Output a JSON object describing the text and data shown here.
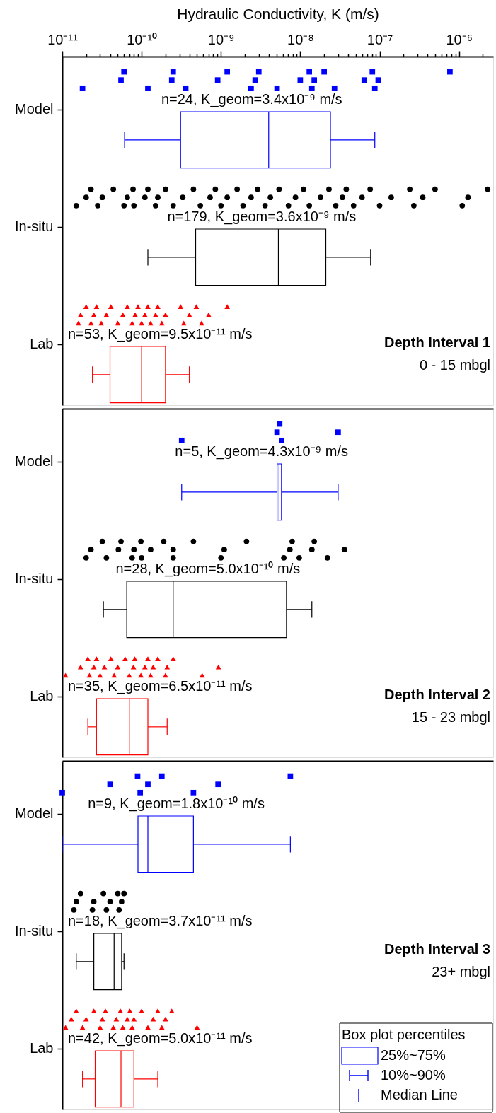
{
  "chart_data": [
    {
      "type": "box",
      "orientation": "horizontal",
      "log": "x",
      "xlabel": "Hydraulic Conductivity, K (m/s)",
      "categories": [
        "Model",
        "In-situ",
        "Lab"
      ],
      "colors": [
        "#0000ff",
        "#000000",
        "#ff0000"
      ],
      "boxes": [
        {
          "low": 6.1e-11,
          "q1": 3.1e-10,
          "median": 4e-09,
          "q3": 2.4e-08,
          "high": 8.7e-08
        },
        {
          "low": 1.2e-10,
          "q1": 4.8e-10,
          "median": 5.3e-09,
          "q3": 2.1e-08,
          "high": 7.7e-08
        },
        {
          "low": 2.4e-11,
          "q1": 4e-11,
          "median": 1e-10,
          "q3": 2e-10,
          "high": 4e-10
        }
      ],
      "series": [
        {
          "type": "scatter",
          "color": "#0000ff",
          "marker": "square",
          "x": [
            "Model",
            "Model",
            "Model",
            "Model",
            "Model",
            "Model",
            "Model",
            "Model",
            "Model",
            "Model",
            "Model",
            "Model",
            "Model",
            "Model",
            "Model",
            "Model",
            "Model",
            "Model",
            "Model",
            "Model",
            "Model",
            "Model",
            "Model",
            "Model"
          ],
          "values": [
            1.8e-11,
            5.5e-11,
            6e-11,
            1.2e-10,
            2.4e-10,
            2.5e-10,
            3.6e-10,
            9.1e-10,
            1.2e-09,
            2.4e-09,
            2.7e-09,
            3e-09,
            5.1e-09,
            1e-08,
            1.3e-08,
            1.4e-08,
            1.5e-08,
            2e-08,
            2.7e-08,
            6.4e-08,
            8.1e-08,
            8.7e-08,
            9.6e-08,
            7.7e-07
          ]
        },
        {
          "type": "scatter",
          "color": "#000000",
          "marker": "circle",
          "x": [
            "In-situ",
            "In-situ",
            "In-situ",
            "In-situ",
            "In-situ",
            "In-situ",
            "In-situ",
            "In-situ",
            "In-situ",
            "In-situ",
            "In-situ",
            "In-situ",
            "In-situ",
            "In-situ",
            "In-situ",
            "In-situ",
            "In-situ",
            "In-situ",
            "In-situ",
            "In-situ",
            "In-situ",
            "In-situ",
            "In-situ",
            "In-situ",
            "In-situ",
            "In-situ",
            "In-situ",
            "In-situ",
            "In-situ",
            "In-situ",
            "In-situ",
            "In-situ",
            "In-situ",
            "In-situ",
            "In-situ",
            "In-situ",
            "In-situ",
            "In-situ",
            "In-situ",
            "In-situ",
            "In-situ",
            "In-situ",
            "In-situ",
            "In-situ",
            "In-situ",
            "In-situ",
            "In-situ",
            "In-situ",
            "In-situ",
            "In-situ",
            "In-situ"
          ],
          "values": [
            1.5e-11,
            2e-11,
            2.3e-11,
            2.8e-11,
            3.2e-11,
            4.4e-11,
            6e-11,
            6.6e-11,
            7.8e-11,
            8e-11,
            1.1e-10,
            1.2e-10,
            1.5e-10,
            1.6e-10,
            2e-10,
            2.5e-10,
            3.3e-10,
            4.5e-10,
            5.5e-10,
            7.3e-10,
            8.5e-10,
            1e-09,
            1.2e-09,
            1.6e-09,
            1.9e-09,
            2.4e-09,
            2.9e-09,
            3.6e-09,
            4.2e-09,
            5.4e-09,
            7.1e-09,
            8.7e-09,
            1.1e-08,
            1.3e-08,
            1.8e-08,
            2.3e-08,
            2.8e-08,
            3.4e-08,
            3.8e-08,
            4.7e-08,
            6e-08,
            7.6e-08,
            1e-07,
            1.4e-07,
            2.4e-07,
            2.7e-07,
            3.5e-07,
            5e-07,
            1.1e-06,
            1.3e-06,
            2.3e-06
          ]
        },
        {
          "type": "scatter",
          "color": "#ff0000",
          "marker": "triangle",
          "x": [
            "Lab",
            "Lab",
            "Lab",
            "Lab",
            "Lab",
            "Lab",
            "Lab",
            "Lab",
            "Lab",
            "Lab",
            "Lab",
            "Lab",
            "Lab",
            "Lab",
            "Lab",
            "Lab",
            "Lab",
            "Lab",
            "Lab",
            "Lab",
            "Lab",
            "Lab",
            "Lab",
            "Lab",
            "Lab",
            "Lab",
            "Lab",
            "Lab",
            "Lab",
            "Lab"
          ],
          "values": [
            1.6e-11,
            1.7e-11,
            2e-11,
            2.3e-11,
            2.5e-11,
            2.7e-11,
            3.1e-11,
            3.6e-11,
            4.1e-11,
            5e-11,
            5.8e-11,
            6.6e-11,
            7.6e-11,
            8.3e-11,
            9e-11,
            1e-10,
            1.1e-10,
            1.2e-10,
            1.3e-10,
            1.5e-10,
            1.6e-10,
            1.8e-10,
            2e-10,
            3.1e-10,
            3.4e-10,
            4e-10,
            4.9e-10,
            5.7e-10,
            7e-10,
            1.2e-09
          ]
        }
      ],
      "xlim": [
        1e-11,
        2.7e-06
      ],
      "xticks": [
        {
          "value": 1e-11,
          "label": "10⁻¹¹"
        },
        {
          "value": 2e-11,
          "label": null
        },
        {
          "value": 3e-11,
          "label": null
        },
        {
          "value": 4e-11,
          "label": null
        },
        {
          "value": 5e-11,
          "label": null
        },
        {
          "value": 6e-11,
          "label": null
        },
        {
          "value": 7e-11,
          "label": null
        },
        {
          "value": 8e-11,
          "label": null
        },
        {
          "value": 9e-11,
          "label": null
        },
        {
          "value": 1e-10,
          "label": "10⁻¹⁰"
        },
        {
          "value": 2e-10,
          "label": null
        },
        {
          "value": 3e-10,
          "label": null
        },
        {
          "value": 4e-10,
          "label": null
        },
        {
          "value": 5e-10,
          "label": null
        },
        {
          "value": 6e-10,
          "label": null
        },
        {
          "value": 7e-10,
          "label": null
        },
        {
          "value": 8e-10,
          "label": null
        },
        {
          "value": 9e-10,
          "label": null
        },
        {
          "value": 1e-09,
          "label": "10⁻⁹"
        },
        {
          "value": 2e-09,
          "label": null
        },
        {
          "value": 3e-09,
          "label": null
        },
        {
          "value": 4e-09,
          "label": null
        },
        {
          "value": 5e-09,
          "label": null
        },
        {
          "value": 6e-09,
          "label": null
        },
        {
          "value": 7e-09,
          "label": null
        },
        {
          "value": 8e-09,
          "label": null
        },
        {
          "value": 9e-09,
          "label": null
        },
        {
          "value": 1e-08,
          "label": "10⁻⁸"
        },
        {
          "value": 2e-08,
          "label": null
        },
        {
          "value": 3e-08,
          "label": null
        },
        {
          "value": 4e-08,
          "label": null
        },
        {
          "value": 5e-08,
          "label": null
        },
        {
          "value": 6e-08,
          "label": null
        },
        {
          "value": 7e-08,
          "label": null
        },
        {
          "value": 8e-08,
          "label": null
        },
        {
          "value": 9e-08,
          "label": null
        },
        {
          "value": 1e-07,
          "label": "10⁻⁷"
        },
        {
          "value": 2e-07,
          "label": null
        },
        {
          "value": 3e-07,
          "label": null
        },
        {
          "value": 4e-07,
          "label": null
        },
        {
          "value": 5e-07,
          "label": null
        },
        {
          "value": 6e-07,
          "label": null
        },
        {
          "value": 7e-07,
          "label": null
        },
        {
          "value": 8e-07,
          "label": null
        },
        {
          "value": 9e-07,
          "label": null
        },
        {
          "value": 1e-06,
          "label": "10⁻⁶"
        },
        {
          "value": 2e-06,
          "label": null
        }
      ],
      "annotations": [
        "Depth Interval 1",
        "0 - 15 mbgl",
        "n=24, K_geom=3.4x10⁻⁹ m/s",
        "n=179, K_geom=3.6x10⁻⁹ m/s",
        "n=53, K_geom=9.5x10⁻¹¹ m/s"
      ]
    },
    {
      "type": "box",
      "orientation": "horizontal",
      "log": "x",
      "tick_labels": "y",
      "categories": [
        "Model",
        "In-situ",
        "Lab"
      ],
      "colors": [
        "#0000ff",
        "#000000",
        "#ff0000"
      ],
      "boxes": [
        {
          "low": 3.2e-10,
          "q1": 5.1e-09,
          "median": 5.4e-09,
          "q3": 5.8e-09,
          "high": 3e-08
        },
        {
          "low": 3.3e-11,
          "q1": 6.5e-11,
          "median": 2.5e-10,
          "q3": 6.7e-09,
          "high": 1.4e-08
        },
        {
          "low": 2.1e-11,
          "q1": 2.7e-11,
          "median": 7e-11,
          "q3": 1.2e-10,
          "high": 2.1e-10
        }
      ],
      "series": [
        {
          "type": "scatter",
          "color": "#0000ff",
          "marker": "square",
          "x": [
            "Model",
            "Model",
            "Model",
            "Model",
            "Model"
          ],
          "values": [
            3.2e-10,
            5.1e-09,
            5.5e-09,
            5.8e-09,
            3e-08
          ]
        },
        {
          "type": "scatter",
          "color": "#000000",
          "marker": "circle",
          "x": [
            "In-situ",
            "In-situ",
            "In-situ",
            "In-situ",
            "In-situ",
            "In-situ",
            "In-situ",
            "In-situ",
            "In-situ",
            "In-situ",
            "In-situ",
            "In-situ",
            "In-situ",
            "In-situ",
            "In-situ",
            "In-situ",
            "In-situ",
            "In-situ",
            "In-situ",
            "In-situ",
            "In-situ",
            "In-situ",
            "In-situ",
            "In-situ",
            "In-situ",
            "In-situ"
          ],
          "values": [
            2e-11,
            2.3e-11,
            3.2e-11,
            3.6e-11,
            5.1e-11,
            5.5e-11,
            7.6e-11,
            8e-11,
            9.8e-11,
            1e-10,
            1.3e-10,
            1.9e-10,
            2.5e-10,
            2.5e-10,
            4.5e-10,
            1e-09,
            1.1e-09,
            2.1e-09,
            6.2e-09,
            7.4e-09,
            7.9e-09,
            9.7e-09,
            1.4e-08,
            1.5e-08,
            2.2e-08,
            3.6e-08
          ]
        },
        {
          "type": "scatter",
          "color": "#ff0000",
          "marker": "triangle",
          "x": [
            "Lab",
            "Lab",
            "Lab",
            "Lab",
            "Lab",
            "Lab",
            "Lab",
            "Lab",
            "Lab",
            "Lab",
            "Lab",
            "Lab",
            "Lab",
            "Lab",
            "Lab",
            "Lab",
            "Lab",
            "Lab",
            "Lab",
            "Lab",
            "Lab",
            "Lab",
            "Lab",
            "Lab",
            "Lab",
            "Lab"
          ],
          "values": [
            1.1e-11,
            1.7e-11,
            2.1e-11,
            2.2e-11,
            2.5e-11,
            2.7e-11,
            3e-11,
            3.4e-11,
            4.1e-11,
            4.5e-11,
            5e-11,
            6.2e-11,
            7e-11,
            7.9e-11,
            8.2e-11,
            9.8e-11,
            1.1e-10,
            1.2e-10,
            1.3e-10,
            1.4e-10,
            1.6e-10,
            2e-10,
            2.1e-10,
            2.5e-10,
            5.8e-10,
            9.3e-10
          ]
        }
      ],
      "xlim": [
        1e-11,
        2.7e-06
      ],
      "annotations": [
        "Depth Interval 2",
        "15 - 23 mbgl",
        "n=5, K_geom=4.3x10⁻⁹ m/s",
        "n=28, K_geom=5.0x10⁻¹⁰ m/s",
        "n=35, K_geom=6.5x10⁻¹¹ m/s"
      ]
    },
    {
      "type": "box",
      "orientation": "horizontal",
      "log": "x",
      "tick_labels": "y",
      "categories": [
        "Model",
        "In-situ",
        "Lab"
      ],
      "colors": [
        "#0000ff",
        "#000000",
        "#ff0000"
      ],
      "boxes": [
        {
          "low": 1e-11,
          "q1": 9e-11,
          "median": 1.2e-10,
          "q3": 4.5e-10,
          "high": 7.5e-09
        },
        {
          "low": 1.5e-11,
          "q1": 2.5e-11,
          "median": 4.5e-11,
          "q3": 5.6e-11,
          "high": 6e-11
        },
        {
          "low": 1.8e-11,
          "q1": 2.6e-11,
          "median": 5.5e-11,
          "q3": 8e-11,
          "high": 1.6e-10
        }
      ],
      "series": [
        {
          "type": "scatter",
          "color": "#0000ff",
          "marker": "square",
          "x": [
            "Model",
            "Model",
            "Model",
            "Model",
            "Model",
            "Model",
            "Model",
            "Model",
            "Model"
          ],
          "values": [
            1e-11,
            4e-11,
            8.9e-11,
            9.6e-11,
            1.2e-10,
            1.8e-10,
            4.5e-10,
            9.2e-10,
            7.5e-09
          ]
        },
        {
          "type": "scatter",
          "color": "#000000",
          "marker": "circle",
          "x": [
            "In-situ",
            "In-situ",
            "In-situ",
            "In-situ",
            "In-situ",
            "In-situ",
            "In-situ",
            "In-situ",
            "In-situ",
            "In-situ",
            "In-situ",
            "In-situ"
          ],
          "values": [
            1.4e-11,
            1.5e-11,
            1.7e-11,
            2.4e-11,
            2.5e-11,
            3.3e-11,
            3.6e-11,
            4e-11,
            5e-11,
            5.2e-11,
            5.6e-11,
            6e-11
          ]
        },
        {
          "type": "scatter",
          "color": "#ff0000",
          "marker": "triangle",
          "x": [
            "Lab",
            "Lab",
            "Lab",
            "Lab",
            "Lab",
            "Lab",
            "Lab",
            "Lab",
            "Lab",
            "Lab",
            "Lab",
            "Lab",
            "Lab",
            "Lab",
            "Lab",
            "Lab",
            "Lab",
            "Lab",
            "Lab",
            "Lab",
            "Lab",
            "Lab",
            "Lab",
            "Lab",
            "Lab"
          ],
          "values": [
            1.1e-11,
            1.3e-11,
            1.5e-11,
            1.8e-11,
            2e-11,
            2.5e-11,
            3e-11,
            3.2e-11,
            3.5e-11,
            4.4e-11,
            4.8e-11,
            5.4e-11,
            5.8e-11,
            6.6e-11,
            7.1e-11,
            7.6e-11,
            8e-11,
            1e-10,
            1.2e-10,
            1.4e-10,
            1.6e-10,
            1.8e-10,
            2e-10,
            2.4e-10,
            5e-10
          ]
        }
      ],
      "xlim": [
        1e-11,
        2.7e-06
      ],
      "legend_title": "Box plot percentiles",
      "annotations": [
        "Depth Interval 3",
        "23+ mbgl",
        "n=9, K_geom=1.8x10⁻¹⁰ m/s",
        "n=18, K_geom=3.7x10⁻¹¹ m/s",
        "n=42, K_geom=5.0x10⁻¹¹ m/s",
        "25%~75%",
        "10%~90%",
        "Median Line"
      ]
    }
  ]
}
